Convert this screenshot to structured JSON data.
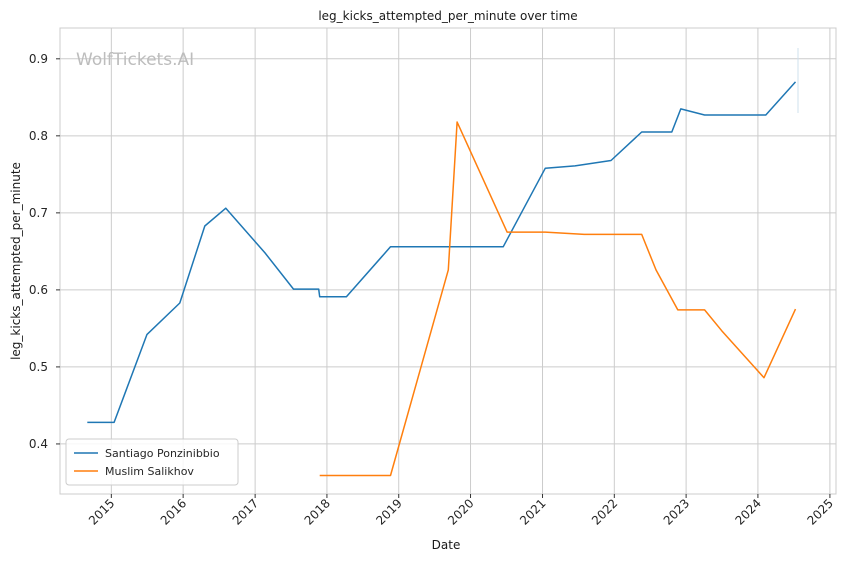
{
  "chart_data": {
    "type": "line",
    "title": "leg_kicks_attempted_per_minute over time",
    "xlabel": "Date",
    "ylabel": "leg_kicks_attempted_per_minute",
    "watermark": "WolfTickets.AI",
    "xlim": [
      "2014-04-15",
      "2025-02-01"
    ],
    "ylim": [
      0.335,
      0.94
    ],
    "x_ticks": [
      "2015",
      "2016",
      "2017",
      "2018",
      "2019",
      "2020",
      "2021",
      "2022",
      "2023",
      "2024",
      "2025"
    ],
    "y_ticks": [
      "0.4",
      "0.5",
      "0.6",
      "0.7",
      "0.8",
      "0.9"
    ],
    "grid": true,
    "legend_position": "lower-left",
    "series": [
      {
        "name": "Santiago Ponzinibbio",
        "color": "#1f77b4",
        "x": [
          "2014-09-01",
          "2015-01-15",
          "2015-07-01",
          "2015-12-15",
          "2016-04-20",
          "2016-08-05",
          "2017-02-20",
          "2017-07-15",
          "2017-11-20",
          "2017-11-25",
          "2018-04-10",
          "2018-11-20",
          "2020-06-15",
          "2021-01-15",
          "2021-06-15",
          "2021-12-15",
          "2022-05-20",
          "2022-10-20",
          "2022-12-05",
          "2023-04-05",
          "2024-02-10",
          "2024-07-10"
        ],
        "y": [
          0.428,
          0.428,
          0.542,
          0.583,
          0.683,
          0.706,
          0.648,
          0.601,
          0.601,
          0.591,
          0.591,
          0.656,
          0.656,
          0.758,
          0.761,
          0.768,
          0.805,
          0.805,
          0.835,
          0.827,
          0.827,
          0.87
        ]
      },
      {
        "name": "Muslim Salikhov",
        "color": "#ff7f0e",
        "x": [
          "2017-11-25",
          "2018-11-20",
          "2019-09-10",
          "2019-10-25",
          "2020-07-05",
          "2021-01-15",
          "2021-08-01",
          "2022-05-20",
          "2022-08-01",
          "2022-11-20",
          "2023-04-05",
          "2023-07-01",
          "2024-02-01",
          "2024-07-10"
        ],
        "y": [
          0.359,
          0.359,
          0.626,
          0.818,
          0.675,
          0.675,
          0.672,
          0.672,
          0.626,
          0.574,
          0.574,
          0.547,
          0.486,
          0.575
        ]
      }
    ]
  }
}
